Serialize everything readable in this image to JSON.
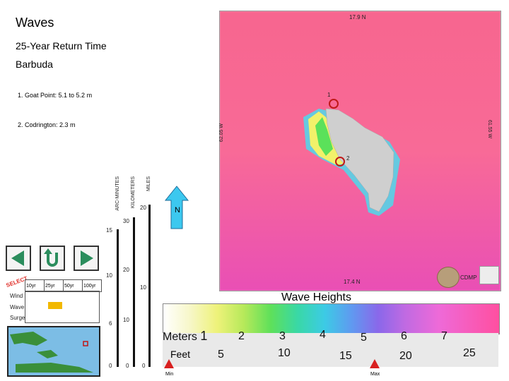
{
  "header": {
    "title": "Waves",
    "subtitle": "25-Year Return Time",
    "island": "Barbuda"
  },
  "locations": [
    {
      "text": "1. Goat Point:  5.1 to 5.2 m"
    },
    {
      "text": "2. Codrington:  2.3 m"
    }
  ],
  "map": {
    "lat_top": "17.9 N",
    "lat_bottom": "17.4 N",
    "lon_left": "62.05 W",
    "lon_right": "61.55 W",
    "marker1": "1",
    "marker2": "2",
    "north": "N",
    "cdmp": "CDMP"
  },
  "scale": {
    "arc": "ARC-MINUTES",
    "km": "KILOMETERS",
    "mi": "MILES",
    "arc_ticks": [
      "15",
      "10",
      "6",
      "0"
    ],
    "km_ticks": [
      "30",
      "20",
      "10",
      "0"
    ],
    "mi_ticks": [
      "20",
      "10",
      "0"
    ]
  },
  "nav": {
    "select_text": "SELECT"
  },
  "grid": {
    "columns": [
      "10yr",
      "25yr",
      "50yr",
      "100yr"
    ],
    "rows": [
      "Wind",
      "Wave",
      "Surge"
    ]
  },
  "legend": {
    "title": "Wave Heights",
    "meters_label": "Meters",
    "meters": [
      "1",
      "2",
      "3",
      "4",
      "5",
      "6",
      "7"
    ],
    "feet_label": "Feet",
    "feet": [
      "5",
      "10",
      "15",
      "20",
      "25"
    ],
    "min": "Min",
    "max": "Max"
  },
  "colors": {
    "map_bg": "#f5518e",
    "land": "#cfcfcf",
    "grid_selected": "#f2b800"
  }
}
